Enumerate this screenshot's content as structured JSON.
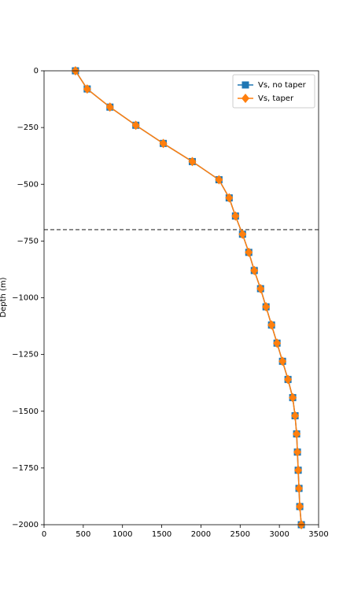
{
  "chart_data": {
    "type": "line",
    "ylabel": "Depth (m)",
    "y": [
      0,
      -80,
      -160,
      -240,
      -320,
      -400,
      -480,
      -560,
      -640,
      -720,
      -800,
      -880,
      -960,
      -1040,
      -1120,
      -1200,
      -1280,
      -1360,
      -1440,
      -1520,
      -1600,
      -1680,
      -1760,
      -1840,
      -1920,
      -2000
    ],
    "series": [
      {
        "name": "Vs, no taper",
        "color": "#1f77b4",
        "marker": "square",
        "values": [
          400,
          550,
          840,
          1170,
          1520,
          1890,
          2230,
          2360,
          2440,
          2530,
          2610,
          2680,
          2760,
          2830,
          2900,
          2970,
          3040,
          3110,
          3170,
          3200,
          3220,
          3230,
          3240,
          3250,
          3260,
          3280
        ]
      },
      {
        "name": "Vs, taper",
        "color": "#ff7f0e",
        "marker": "diamond",
        "values": [
          400,
          550,
          840,
          1170,
          1520,
          1890,
          2230,
          2360,
          2440,
          2530,
          2610,
          2680,
          2760,
          2830,
          2900,
          2970,
          3040,
          3110,
          3170,
          3200,
          3220,
          3230,
          3240,
          3250,
          3260,
          3280
        ]
      }
    ],
    "xlim": [
      0,
      3500
    ],
    "xticks": [
      0,
      500,
      1000,
      1500,
      2000,
      2500,
      3000,
      3500
    ],
    "ylim": [
      -2000,
      0
    ],
    "yticks": [
      {
        "value": -2000,
        "label": "−2000"
      },
      {
        "value": -1750,
        "label": "−1750"
      },
      {
        "value": -1500,
        "label": "−1500"
      },
      {
        "value": -1250,
        "label": "−1250"
      },
      {
        "value": -1000,
        "label": "−1000"
      },
      {
        "value": -750,
        "label": "−750"
      },
      {
        "value": -500,
        "label": "−500"
      },
      {
        "value": -250,
        "label": "−250"
      },
      0
    ],
    "hline": -700,
    "hline_color": "#333333",
    "legend": "upper right",
    "grid": false
  }
}
